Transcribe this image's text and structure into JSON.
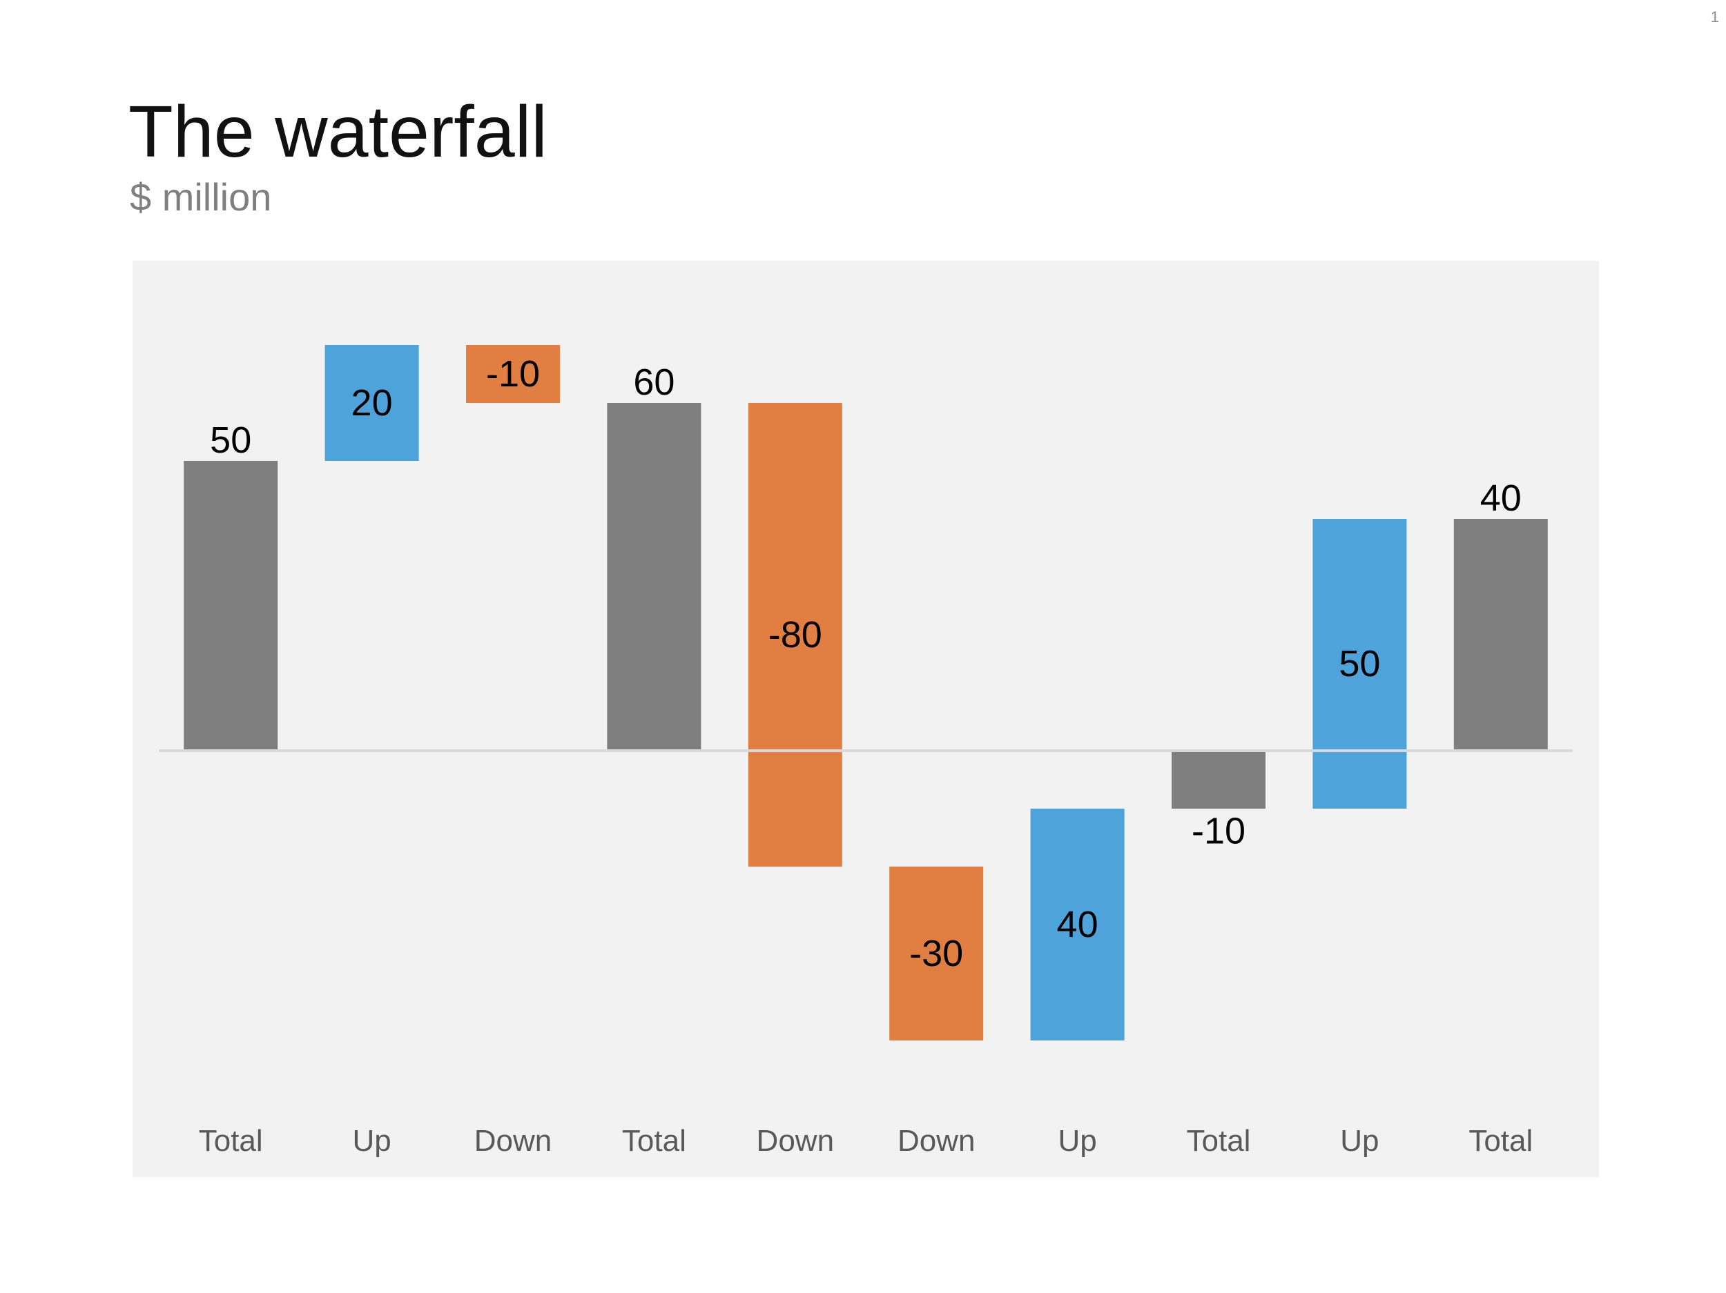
{
  "page": {
    "number": "1",
    "title": "The waterfall",
    "subtitle": "$ million"
  },
  "colors": {
    "total": "#7f7f7f",
    "up": "#4fa3db",
    "down": "#e07f41",
    "axis": "#d9d9d9",
    "panel": "#f2f2f2"
  },
  "chart_data": {
    "type": "bar",
    "subtype": "waterfall",
    "title": "The waterfall",
    "subtitle": "$ million",
    "xlabel": "",
    "ylabel": "",
    "ylim": [
      -50,
      70
    ],
    "grid": false,
    "legend": "none",
    "categories": [
      "Total",
      "Up",
      "Down",
      "Total",
      "Down",
      "Down",
      "Up",
      "Total",
      "Up",
      "Total"
    ],
    "kinds": [
      "total",
      "up",
      "down",
      "total",
      "down",
      "down",
      "up",
      "total",
      "up",
      "total"
    ],
    "values": [
      50,
      20,
      -10,
      60,
      -80,
      -30,
      40,
      -10,
      50,
      40
    ],
    "bar_start": [
      0,
      50,
      70,
      0,
      60,
      -20,
      -50,
      0,
      -10,
      0
    ],
    "bar_end": [
      50,
      70,
      60,
      60,
      -20,
      -50,
      -10,
      -10,
      40,
      40
    ],
    "data_labels": [
      "50",
      "20",
      "-10",
      "60",
      "-80",
      "-30",
      "40",
      "-10",
      "50",
      "40"
    ],
    "label_positions": [
      "outside",
      "inside",
      "inside",
      "outside",
      "inside",
      "inside",
      "inside",
      "outside",
      "inside",
      "outside"
    ]
  }
}
